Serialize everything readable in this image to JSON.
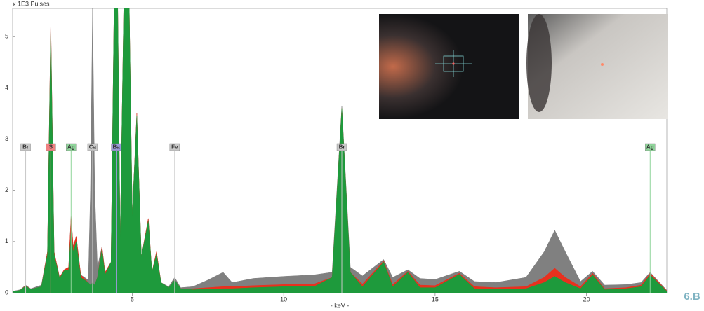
{
  "chart_data": {
    "type": "area",
    "y_label": "x 1E3 Pulses",
    "x_label": "- keV -",
    "figure_label": "6.B",
    "xlim": [
      1.05,
      22.65
    ],
    "ylim": [
      0,
      5.55
    ],
    "xticks": [
      5,
      10,
      15,
      20
    ],
    "yticks": [
      0,
      1,
      2,
      3,
      4,
      5
    ],
    "x": [
      1.05,
      1.3,
      1.48,
      1.65,
      2.0,
      2.2,
      2.31,
      2.42,
      2.6,
      2.75,
      2.9,
      2.98,
      3.05,
      3.15,
      3.3,
      3.55,
      3.62,
      3.69,
      3.76,
      3.85,
      4.0,
      4.1,
      4.3,
      4.4,
      4.52,
      4.6,
      4.72,
      4.9,
      5.0,
      5.15,
      5.3,
      5.53,
      5.65,
      5.8,
      5.95,
      6.2,
      6.4,
      6.6,
      7.0,
      7.5,
      8.0,
      8.3,
      9.0,
      10.0,
      11.0,
      11.6,
      11.92,
      12.2,
      12.6,
      13.3,
      13.6,
      14.1,
      14.5,
      15.0,
      15.8,
      16.3,
      17.0,
      18.0,
      18.6,
      18.95,
      19.3,
      19.8,
      20.2,
      20.6,
      21.3,
      21.8,
      22.1,
      22.65
    ],
    "series": [
      {
        "color": "#808080",
        "values": [
          0.03,
          0.06,
          0.15,
          0.08,
          0.15,
          0.8,
          5.3,
          0.8,
          0.3,
          0.45,
          0.5,
          1.5,
          0.9,
          1.1,
          0.35,
          0.25,
          2.0,
          5.6,
          2.0,
          0.5,
          0.9,
          0.4,
          0.6,
          5.6,
          5.6,
          1.0,
          5.6,
          5.6,
          1.5,
          3.5,
          0.7,
          1.45,
          0.4,
          0.8,
          0.2,
          0.12,
          0.3,
          0.1,
          0.12,
          0.25,
          0.4,
          0.2,
          0.28,
          0.32,
          0.35,
          0.4,
          3.65,
          0.5,
          0.33,
          0.65,
          0.3,
          0.45,
          0.28,
          0.26,
          0.42,
          0.22,
          0.2,
          0.3,
          0.8,
          1.22,
          0.8,
          0.22,
          0.42,
          0.15,
          0.16,
          0.2,
          0.4,
          0.05
        ]
      },
      {
        "color": "#e8301e",
        "values": [
          0.02,
          0.05,
          0.14,
          0.07,
          0.12,
          0.8,
          5.3,
          0.8,
          0.3,
          0.45,
          0.5,
          1.5,
          0.9,
          1.1,
          0.35,
          0.2,
          0.15,
          0.2,
          0.15,
          0.3,
          0.9,
          0.4,
          0.6,
          5.6,
          5.6,
          1.0,
          5.6,
          5.6,
          1.5,
          3.5,
          0.7,
          1.45,
          0.4,
          0.8,
          0.2,
          0.1,
          0.25,
          0.08,
          0.08,
          0.1,
          0.12,
          0.12,
          0.14,
          0.16,
          0.17,
          0.3,
          3.6,
          0.4,
          0.17,
          0.62,
          0.16,
          0.42,
          0.15,
          0.14,
          0.38,
          0.12,
          0.1,
          0.12,
          0.3,
          0.48,
          0.3,
          0.12,
          0.38,
          0.08,
          0.1,
          0.15,
          0.38,
          0.04
        ]
      },
      {
        "color": "#1e9a3c",
        "values": [
          0.02,
          0.05,
          0.13,
          0.07,
          0.12,
          0.75,
          5.2,
          0.75,
          0.28,
          0.43,
          0.45,
          1.2,
          0.8,
          1.0,
          0.3,
          0.2,
          0.15,
          0.2,
          0.15,
          0.3,
          0.85,
          0.35,
          0.6,
          5.6,
          5.6,
          1.0,
          5.6,
          5.6,
          1.5,
          3.45,
          0.7,
          1.4,
          0.4,
          0.75,
          0.2,
          0.1,
          0.25,
          0.08,
          0.06,
          0.07,
          0.08,
          0.08,
          0.1,
          0.12,
          0.12,
          0.3,
          3.6,
          0.4,
          0.12,
          0.6,
          0.12,
          0.4,
          0.1,
          0.1,
          0.36,
          0.08,
          0.07,
          0.08,
          0.2,
          0.32,
          0.2,
          0.08,
          0.35,
          0.06,
          0.08,
          0.12,
          0.35,
          0.03
        ]
      }
    ],
    "markers": [
      {
        "label": "Br",
        "x": 1.48,
        "color": "#c8c8c8"
      },
      {
        "label": "S",
        "x": 2.31,
        "color": "#f08080"
      },
      {
        "label": "Ag",
        "x": 2.98,
        "color": "#8fd49a"
      },
      {
        "label": "Ca",
        "x": 3.69,
        "color": "#c8c8c8"
      },
      {
        "label": "Ba",
        "x": 4.47,
        "color": "#9a9ad8"
      },
      {
        "label": "Fe",
        "x": 6.4,
        "color": "#c8c8c8"
      },
      {
        "label": "Br",
        "x": 11.92,
        "color": "#c8c8c8"
      },
      {
        "label": "Ag",
        "x": 22.1,
        "color": "#8fd49a"
      }
    ]
  }
}
